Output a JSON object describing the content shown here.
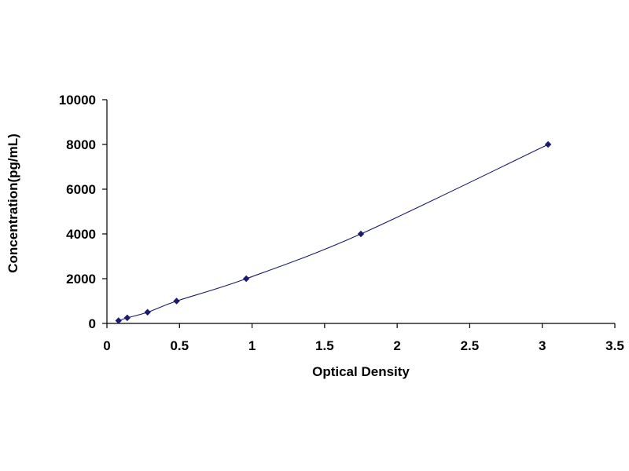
{
  "chart_data": {
    "type": "scatter",
    "title": "",
    "xlabel": "Optical Density",
    "ylabel": "Concentration(pg/mL)",
    "xlim": [
      0,
      3.5
    ],
    "ylim": [
      0,
      10000
    ],
    "xticks": [
      "0",
      "0.5",
      "1",
      "1.5",
      "2",
      "2.5",
      "3",
      "3.5"
    ],
    "yticks": [
      "0",
      "2000",
      "4000",
      "6000",
      "8000",
      "10000"
    ],
    "grid": false,
    "legend": "none",
    "series": [
      {
        "x": [
          0.08,
          0.14,
          0.28,
          0.48,
          0.96,
          1.75,
          3.04
        ],
        "y": [
          125,
          250,
          500,
          1000,
          2000,
          4000,
          8000
        ],
        "marker": "diamond",
        "line": "smooth",
        "color": "#1a1a6e"
      }
    ]
  }
}
